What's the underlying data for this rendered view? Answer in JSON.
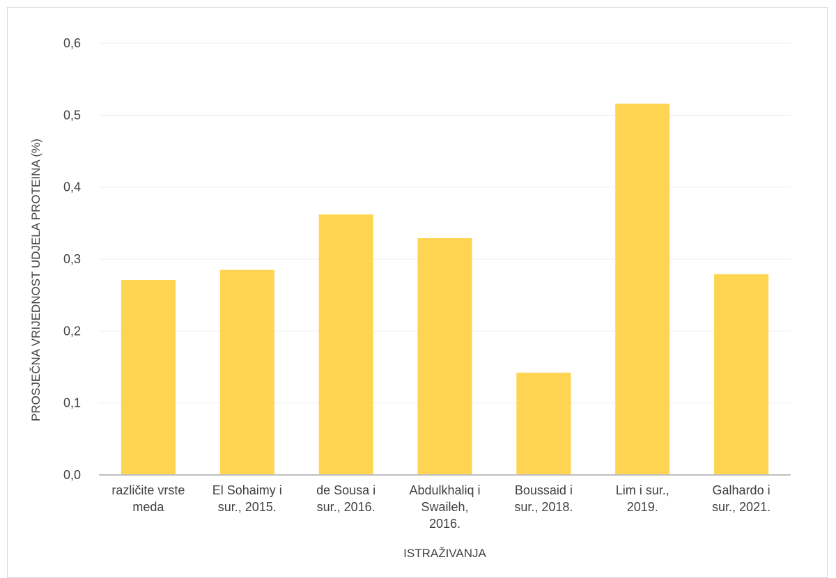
{
  "chart_data": {
    "type": "bar",
    "categories": [
      [
        "različite vrste",
        "meda"
      ],
      [
        "El Sohaimy i",
        "sur., 2015."
      ],
      [
        "de Sousa i",
        "sur., 2016."
      ],
      [
        "Abdulkhaliq i",
        "Swaileh,",
        "2016."
      ],
      [
        "Boussaid i",
        "sur., 2018."
      ],
      [
        "Lim i sur.,",
        "2019."
      ],
      [
        "Galhardo i",
        "sur., 2021."
      ]
    ],
    "values": [
      0.271,
      0.285,
      0.362,
      0.329,
      0.142,
      0.516,
      0.279
    ],
    "title": "",
    "xlabel": "ISTRAŽIVANJA",
    "ylabel": "PROSJEČNA VRIJEDNOST UDJELA PROTEINA (%)",
    "ylim": [
      0,
      0.6
    ],
    "yticks": [
      "0,0",
      "0,1",
      "0,2",
      "0,3",
      "0,4",
      "0,5",
      "0,6"
    ],
    "grid": true,
    "legend": "none",
    "bar_color": "#FFD450",
    "grid_color": "#ececec",
    "axis_color": "#bfbfbf"
  }
}
